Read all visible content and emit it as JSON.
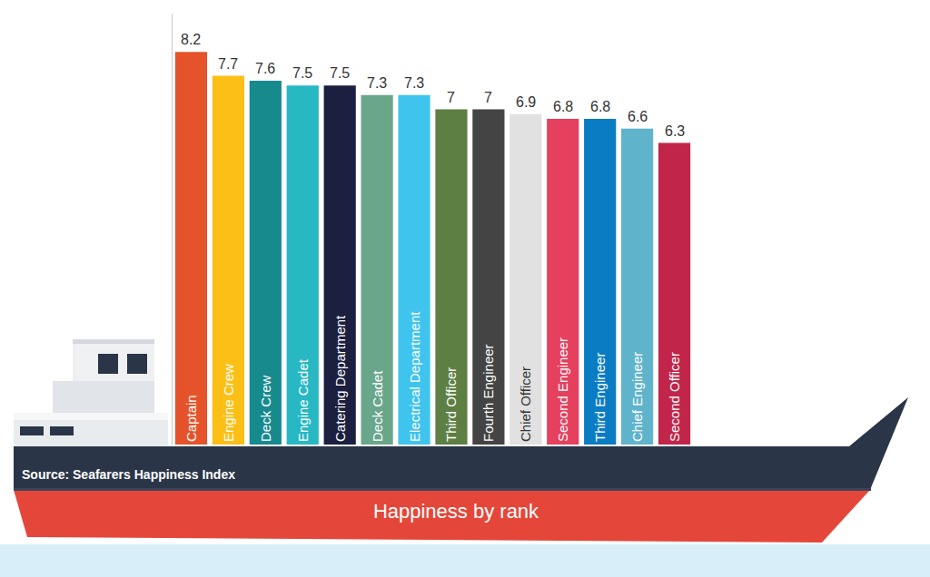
{
  "chart_data": {
    "type": "bar",
    "title": "Happiness by rank",
    "annotations": [
      "Source: Seafarers Happiness Index"
    ],
    "categories": [
      "Captain",
      "Engine Crew",
      "Deck Crew",
      "Engine Cadet",
      "Catering Department",
      "Deck Cadet",
      "Electrical Department",
      "Third Officer",
      "Fourth Engineer",
      "Chief Officer",
      "Second Engineer",
      "Third Engineer",
      "Chief Engineer",
      "Second Officer"
    ],
    "values": [
      8.2,
      7.7,
      7.6,
      7.5,
      7.5,
      7.3,
      7.3,
      7,
      7,
      6.9,
      6.8,
      6.8,
      6.6,
      6.3
    ],
    "colors": [
      "#e5532a",
      "#fcbf16",
      "#178a8e",
      "#27b8c4",
      "#1b1f40",
      "#6aa68a",
      "#3fc4ee",
      "#5e7f44",
      "#444444",
      "#e1e1e1",
      "#e5405e",
      "#0a7cc4",
      "#5fb4cc",
      "#c2254a"
    ],
    "ylim": [
      0,
      9
    ],
    "tick_labels": false,
    "data_labels": true,
    "grid": false
  }
}
